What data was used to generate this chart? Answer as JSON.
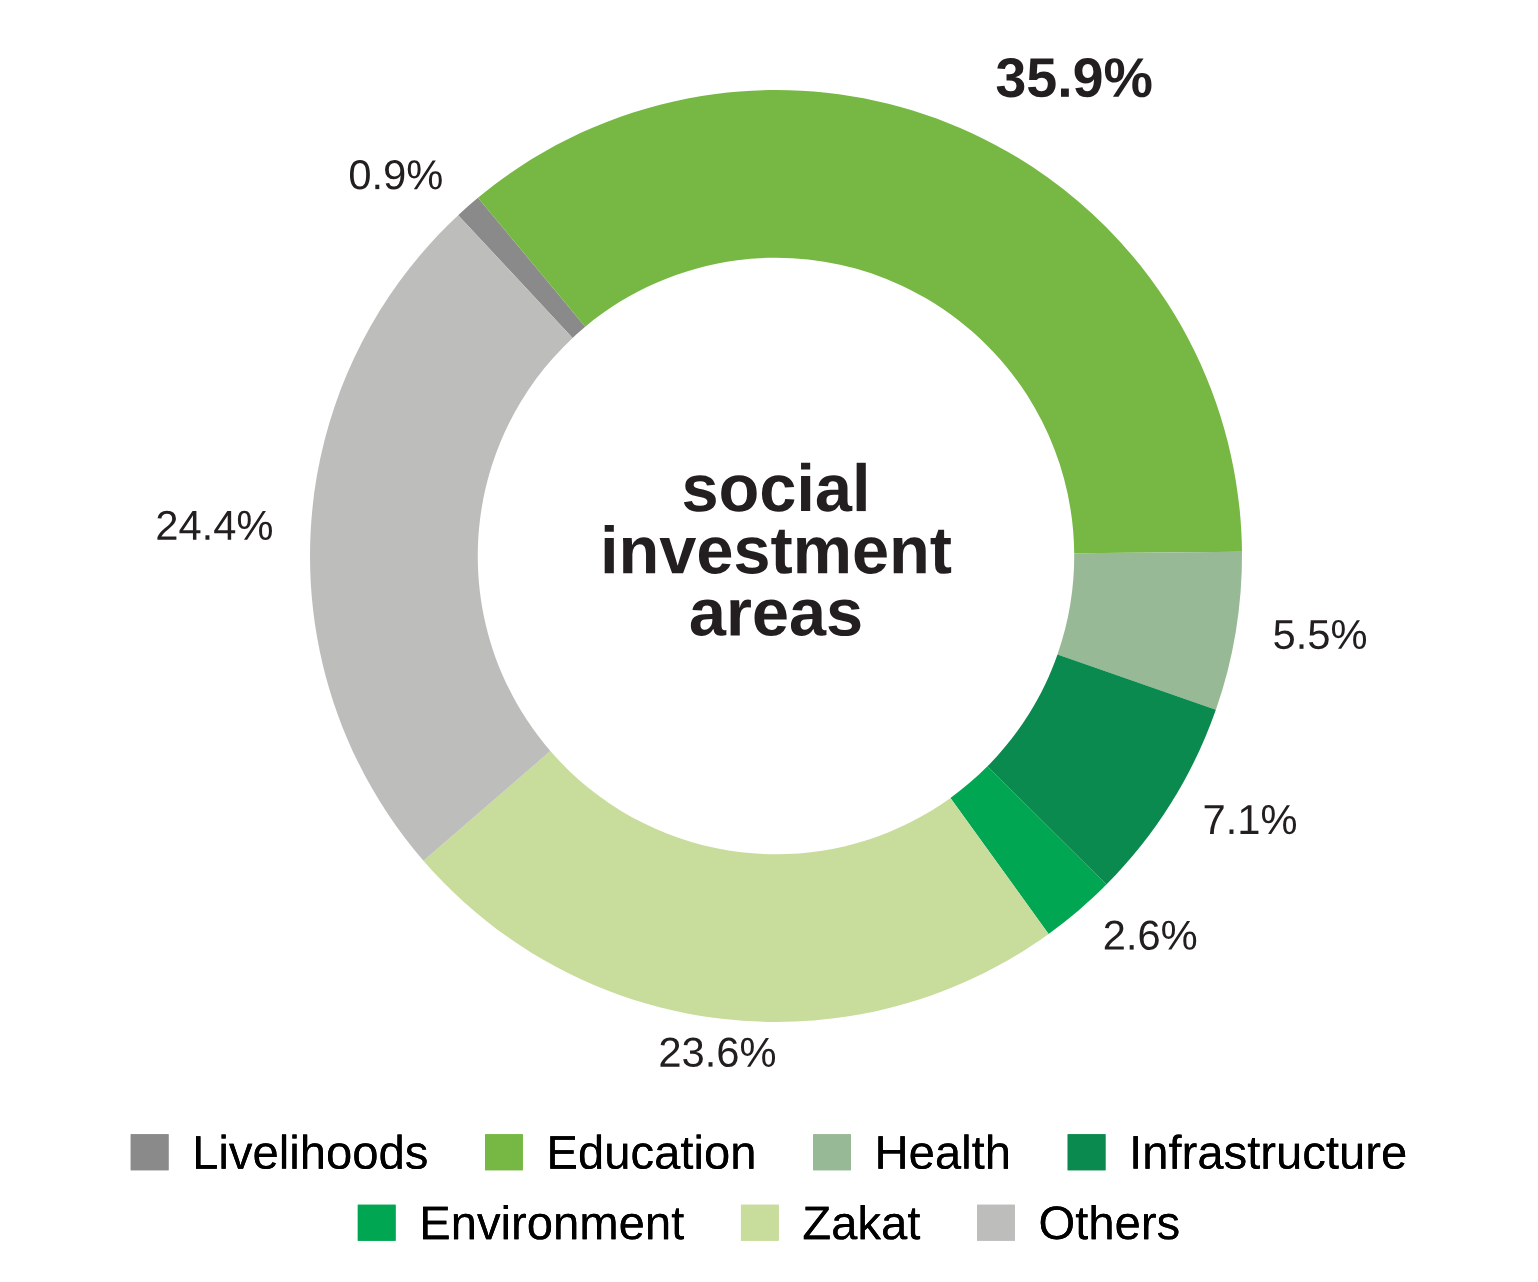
{
  "chart_data": {
    "type": "donut",
    "title": "social\ninvestment\nareas",
    "categories": [
      "Livelihoods",
      "Education",
      "Health",
      "Infrastructure",
      "Environment",
      "Zakat",
      "Others"
    ],
    "values": [
      0.9,
      35.9,
      5.5,
      7.1,
      2.6,
      23.6,
      24.4
    ],
    "colors": [
      "#8a8a8a",
      "#76b843",
      "#98b995",
      "#0a8a4e",
      "#00a651",
      "#c8dc9c",
      "#bdbdbc"
    ],
    "value_labels": [
      "0.9%",
      "35.9%",
      "5.5%",
      "7.1%",
      "2.6%",
      "23.6%",
      "24.4%"
    ],
    "legend": "bottom"
  }
}
